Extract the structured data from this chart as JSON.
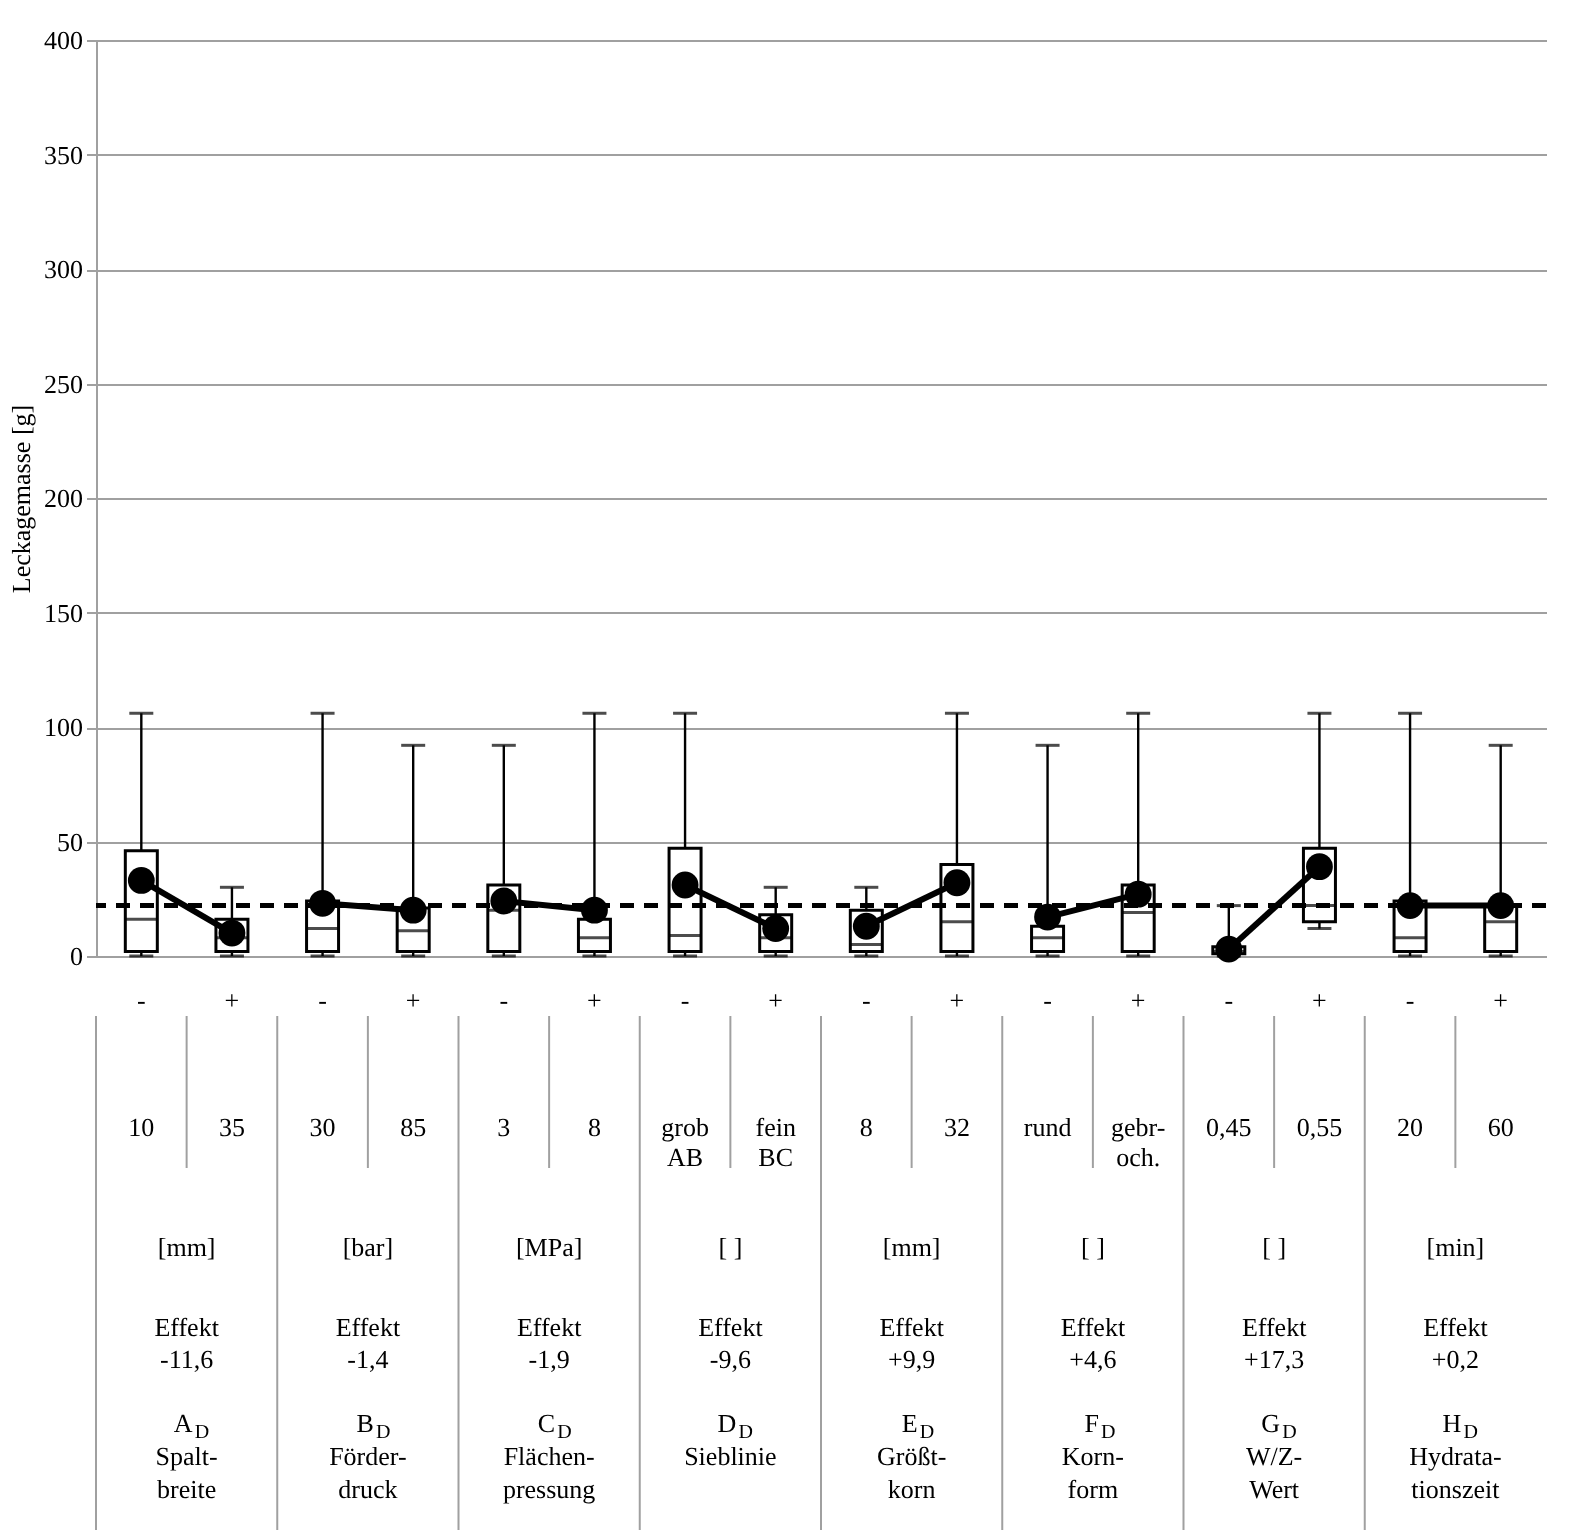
{
  "chart_data": {
    "type": "box",
    "ylabel": "Leckagemasse  [g]",
    "categories": [
      "-",
      "+",
      "-",
      "+",
      "-",
      "+",
      "-",
      "+",
      "-",
      "+",
      "-",
      "+",
      "-",
      "+",
      "-",
      "+"
    ],
    "boxes": [
      {
        "low": 0,
        "q1": 2,
        "median": 16,
        "q3": 46,
        "high": 106
      },
      {
        "low": 0,
        "q1": 2,
        "median": 8,
        "q3": 16,
        "high": 30
      },
      {
        "low": 0,
        "q1": 2,
        "median": 12,
        "q3": 24,
        "high": 106
      },
      {
        "low": 0,
        "q1": 2,
        "median": 11,
        "q3": 21,
        "high": 92
      },
      {
        "low": 0,
        "q1": 2,
        "median": 20,
        "q3": 31,
        "high": 92
      },
      {
        "low": 0,
        "q1": 2,
        "median": 8,
        "q3": 16,
        "high": 106
      },
      {
        "low": 0,
        "q1": 2,
        "median": 9,
        "q3": 47,
        "high": 106
      },
      {
        "low": 0,
        "q1": 2,
        "median": 8,
        "q3": 18,
        "high": 30
      },
      {
        "low": 0,
        "q1": 2,
        "median": 5,
        "q3": 20,
        "high": 30
      },
      {
        "low": 0,
        "q1": 2,
        "median": 15,
        "q3": 40,
        "high": 106
      },
      {
        "low": 0,
        "q1": 2,
        "median": 8,
        "q3": 13,
        "high": 92
      },
      {
        "low": 0,
        "q1": 2,
        "median": 19,
        "q3": 31,
        "high": 106
      },
      {
        "low": 0,
        "q1": 1,
        "median": 2,
        "q3": 4,
        "high": 22
      },
      {
        "low": 12,
        "q1": 15,
        "median": 22,
        "q3": 47,
        "high": 106
      },
      {
        "low": 0,
        "q1": 2,
        "median": 8,
        "q3": 24,
        "high": 106
      },
      {
        "low": 0,
        "q1": 2,
        "median": 15,
        "q3": 22,
        "high": 92
      }
    ],
    "series": [
      {
        "type": "line",
        "color": "#000000",
        "values": [
          33,
          10,
          null,
          null,
          null,
          null,
          null,
          null,
          null,
          null,
          null,
          null,
          null,
          null,
          null,
          null
        ]
      },
      {
        "type": "line",
        "color": "#000000",
        "values": [
          null,
          null,
          23,
          20,
          null,
          null,
          null,
          null,
          null,
          null,
          null,
          null,
          null,
          null,
          null,
          null
        ]
      },
      {
        "type": "line",
        "color": "#000000",
        "values": [
          null,
          null,
          null,
          null,
          24,
          20,
          null,
          null,
          null,
          null,
          null,
          null,
          null,
          null,
          null,
          null
        ]
      },
      {
        "type": "line",
        "color": "#000000",
        "values": [
          null,
          null,
          null,
          null,
          null,
          null,
          31,
          12,
          null,
          null,
          null,
          null,
          null,
          null,
          null,
          null
        ]
      },
      {
        "type": "line",
        "color": "#000000",
        "values": [
          null,
          null,
          null,
          null,
          null,
          null,
          null,
          null,
          13,
          32,
          null,
          null,
          null,
          null,
          null,
          null
        ]
      },
      {
        "type": "line",
        "color": "#000000",
        "values": [
          null,
          null,
          null,
          null,
          null,
          null,
          null,
          null,
          null,
          null,
          17,
          27,
          null,
          null,
          null,
          null
        ]
      },
      {
        "type": "line",
        "color": "#000000",
        "values": [
          null,
          null,
          null,
          null,
          null,
          null,
          null,
          null,
          null,
          null,
          null,
          null,
          3,
          39,
          null,
          null
        ]
      },
      {
        "type": "line",
        "color": "#000000",
        "values": [
          null,
          null,
          null,
          null,
          null,
          null,
          null,
          null,
          null,
          null,
          null,
          null,
          null,
          null,
          22,
          22
        ]
      }
    ],
    "marker": "circle",
    "line_style": "solid",
    "ylim": [
      0,
      400
    ],
    "yticks": [
      0,
      50,
      100,
      150,
      200,
      250,
      300,
      350,
      400
    ],
    "grid": "y",
    "ref_lines": [
      {
        "axis": "y",
        "value": 22,
        "color": "#000000",
        "line_style": "dashed"
      }
    ],
    "annotations": [
      "10",
      "35",
      "30",
      "85",
      "3",
      "8",
      "grob\nAB",
      "fein\nBC",
      "8",
      "32",
      "rund",
      "gebr-\noch.",
      "0,45",
      "0,55",
      "20",
      "60",
      "[mm]",
      "[bar]",
      "[MPa]",
      "[ ]",
      "[mm]",
      "[ ]",
      "[ ]",
      "[min]",
      "Effekt\n-11,6",
      "Effekt\n-1,4",
      "Effekt\n-1,9",
      "Effekt\n-9,6",
      "Effekt\n+9,9",
      "Effekt\n+4,6",
      "Effekt\n+17,3",
      "Effekt\n+0,2",
      "A$_{D}$\nSpalt-\nbreite",
      "B$_{D}$\nFörder-\ndruck",
      "C$_{D}$\nFlächen-\npressung",
      "D$_{D}$\nSieblinie",
      "E$_{D}$\nGrößt-\nkorn",
      "F$_{D}$\nKorn-\nform",
      "G$_{D}$\nW/Z-\nWert",
      "H$_{D}$\nHydrata-\ntionszeit"
    ]
  }
}
